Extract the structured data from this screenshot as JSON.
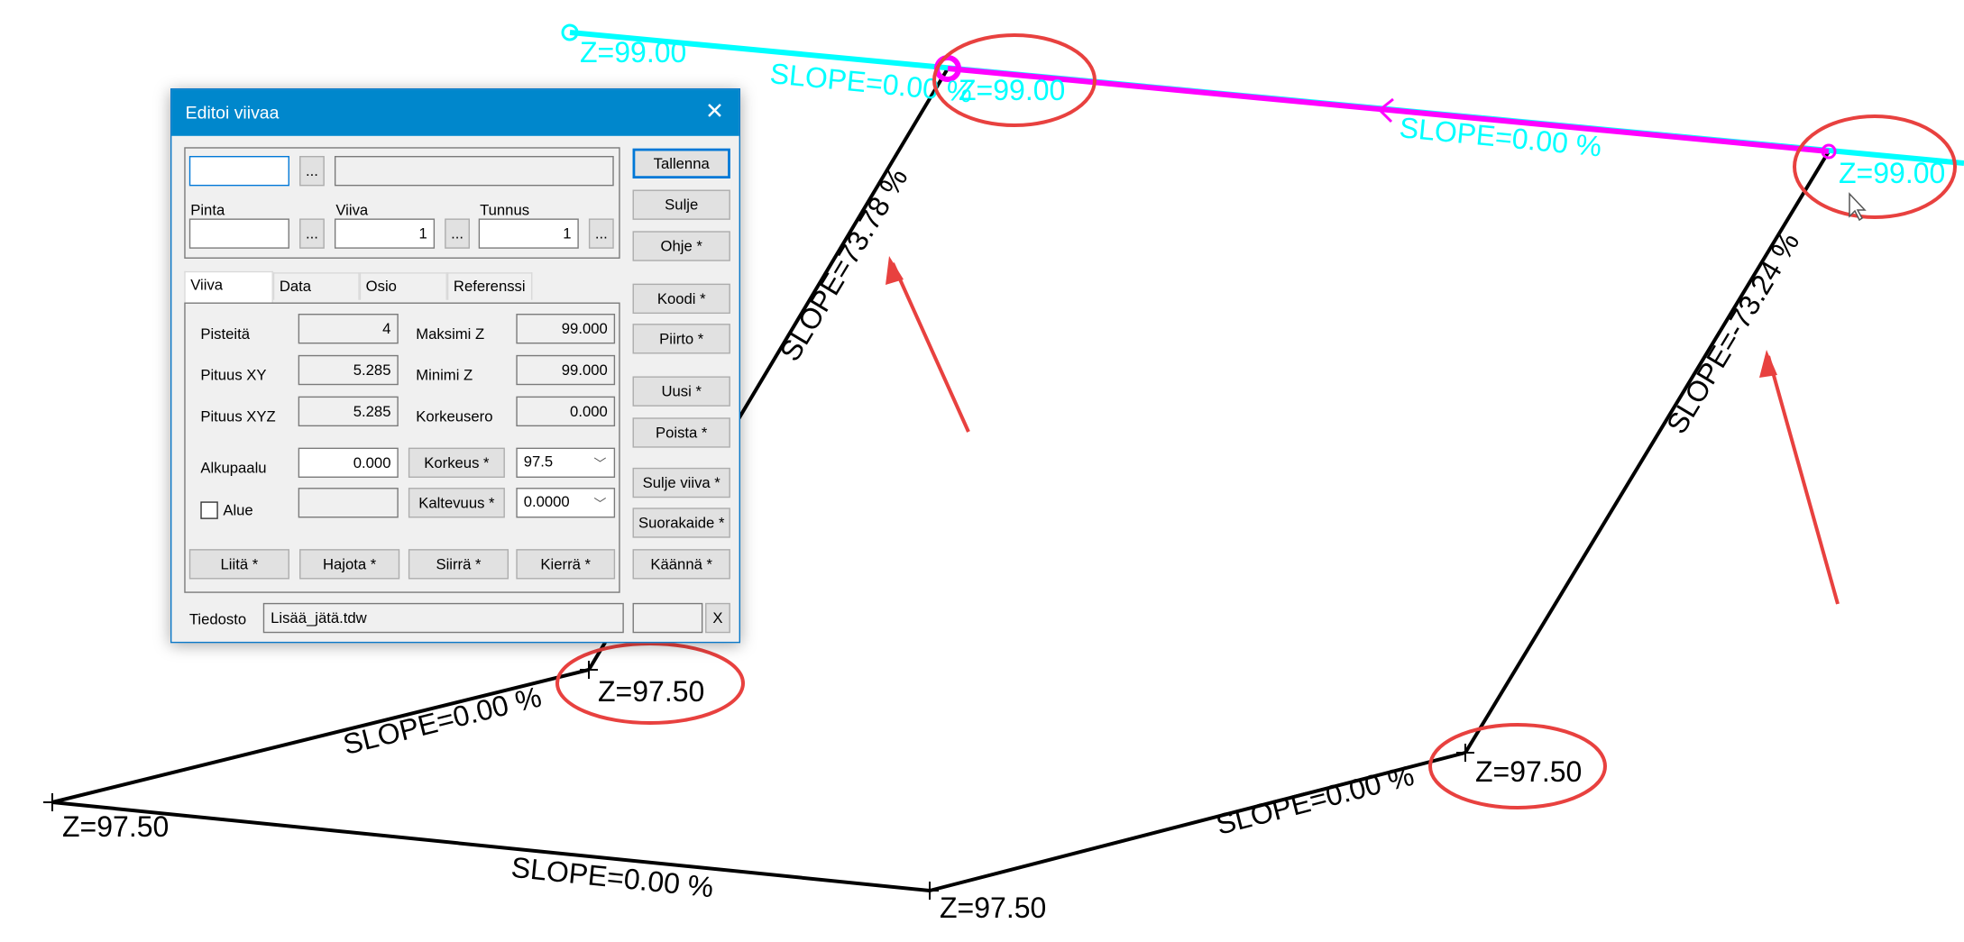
{
  "canvas": {
    "colors": {
      "selected_line": "#ff00ff",
      "cyan_line": "#00ffff",
      "line": "#000000",
      "annotation": "#e8413f"
    },
    "labels": {
      "z_cyan_left": "Z=99.00",
      "slope_cyan_left": "SLOPE=0.00 %",
      "z_cyan_mid": "Z=99.00",
      "slope_magenta": "SLOPE=0.00 %",
      "z_cyan_right": "Z=99.00",
      "slope_left_riser": "SLOPE=73.78 %",
      "slope_right_riser": "SLOPE=-73.24 %",
      "z_mid_left": "Z=97.50",
      "slope_bottom_1": "SLOPE=0.00 %",
      "z_far_left": "Z=97.50",
      "slope_bottom_2": "SLOPE=0.00 %",
      "z_bottom": "Z=97.50",
      "slope_bottom_3": "SLOPE=0.00 %",
      "z_right": "Z=97.50"
    }
  },
  "dialog": {
    "title": "Editoi viivaa",
    "top_field": "",
    "top_desc": "",
    "pinta_label": "Pinta",
    "pinta_value": "",
    "viiva_label": "Viiva",
    "viiva_value": "1",
    "tunnus_label": "Tunnus",
    "tunnus_value": "1",
    "browse": "...",
    "tabs": [
      "Viiva",
      "Data",
      "Osio",
      "Referenssi"
    ],
    "fields": {
      "pisteita_label": "Pisteitä",
      "pisteita": "4",
      "pituus_xy_label": "Pituus XY",
      "pituus_xy": "5.285",
      "pituus_xyz_label": "Pituus XYZ",
      "pituus_xyz": "5.285",
      "maksimi_z_label": "Maksimi Z",
      "maksimi_z": "99.000",
      "minimi_z_label": "Minimi Z",
      "minimi_z": "99.000",
      "korkeusero_label": "Korkeusero",
      "korkeusero": "0.000",
      "alkupaalu_label": "Alkupaalu",
      "alkupaalu": "0.000",
      "alue_label": "Alue",
      "alue_checked": false,
      "korkeus_button": "Korkeus *",
      "korkeus": "97.5",
      "kaltevuus_button": "Kaltevuus *",
      "kaltevuus": "0.0000"
    },
    "bottom_buttons": [
      "Liitä *",
      "Hajota *",
      "Siirrä *",
      "Kierrä *"
    ],
    "side_buttons": [
      "Tallenna",
      "Sulje",
      "Ohje *",
      "Koodi *",
      "Piirto *",
      "Uusi *",
      "Poista *",
      "Sulje viiva *",
      "Suorakaide *",
      "Käännä *"
    ],
    "tiedosto_label": "Tiedosto",
    "tiedosto": "Lisää_jätä.tdw",
    "clear": "X"
  }
}
